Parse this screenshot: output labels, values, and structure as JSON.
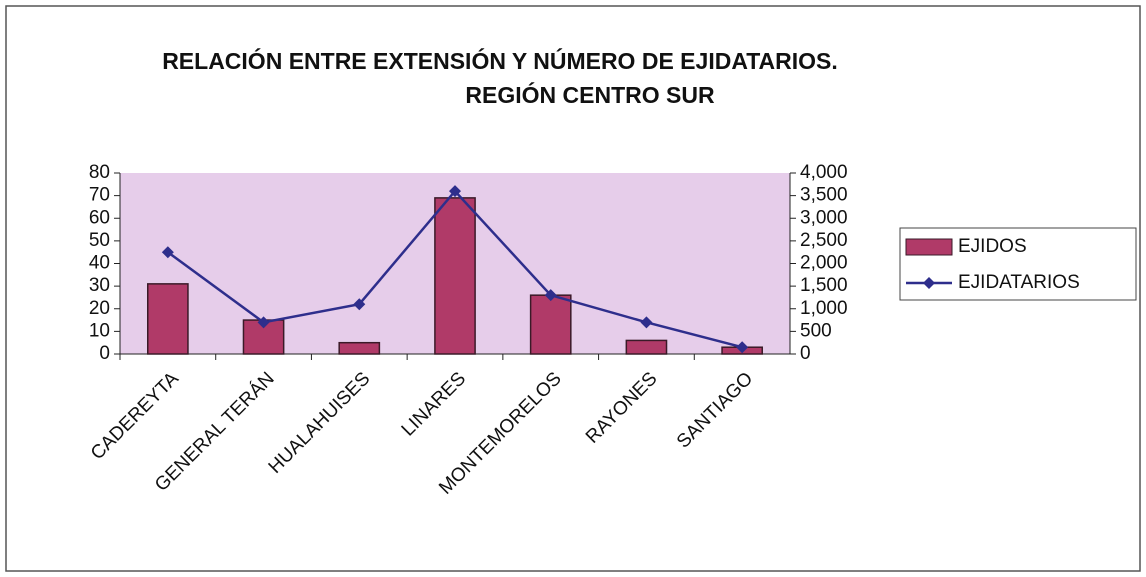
{
  "chart_data": {
    "type": "bar_line",
    "title": "RELACIÓN ENTRE EXTENSIÓN Y NÚMERO DE EJIDATARIOS.",
    "subtitle": "REGIÓN CENTRO SUR",
    "categories": [
      "CADEREYTA",
      "GENERAL TERÁN",
      "HUALAHUISES",
      "LINARES",
      "MONTEMORELOS",
      "RAYONES",
      "SANTIAGO"
    ],
    "series": [
      {
        "name": "EJIDOS",
        "type": "bar",
        "color": "#b03a68",
        "values": [
          31,
          15,
          5,
          69,
          26,
          6,
          3
        ]
      },
      {
        "name": "EJIDATARIOS",
        "type": "line",
        "axis": "y2",
        "color": "#2e2e8c",
        "values": [
          2250,
          700,
          1100,
          3600,
          1300,
          700,
          150
        ]
      }
    ],
    "ylim": [
      0,
      80
    ],
    "yticks": [
      0,
      10,
      20,
      30,
      40,
      50,
      60,
      70,
      80
    ],
    "y2lim": [
      0,
      4000
    ],
    "y2ticks": [
      0,
      500,
      {
        "value": 1000,
        "label": "1,000"
      },
      {
        "value": 1500,
        "label": "1,500"
      },
      {
        "value": 2000,
        "label": "2,000"
      },
      {
        "value": 2500,
        "label": "2,500"
      },
      {
        "value": 3000,
        "label": "3,000"
      },
      {
        "value": 3500,
        "label": "3,500"
      },
      {
        "value": 4000,
        "label": "4,000"
      }
    ],
    "legend": "right"
  }
}
